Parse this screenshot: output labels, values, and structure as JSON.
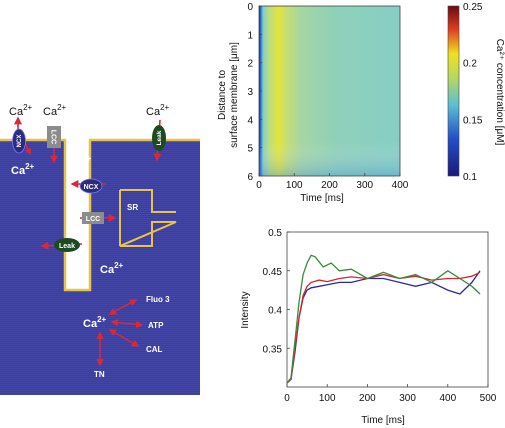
{
  "diagram": {
    "colors": {
      "cell": "#3c3e9c",
      "membrane": "#e6c44a",
      "arrow": "#d9283a",
      "channel_ncx": "#2c2c7c",
      "channel_lcc": "#8c8c8c",
      "channel_leak": "#1e4a22",
      "text": "#ffffff"
    },
    "outside_labels": {
      "ca_left": "Ca",
      "ca_mid": "Ca",
      "ca_right": "Ca",
      "charge": "2+"
    },
    "labels": {
      "ncx": "NCX",
      "lcc": "LCC",
      "leak": "Leak",
      "sr": "SR",
      "ca": "Ca",
      "charge": "2+",
      "fluo3": "Fluo 3",
      "atp": "ATP",
      "cal": "CAL",
      "tn": "TN"
    }
  },
  "heatmap": {
    "ylabel_line1": "Distance to",
    "ylabel_line2": "surface membrane [μm]",
    "xlabel": "Time [ms]",
    "yticks": [
      "0",
      "1",
      "2",
      "3",
      "4",
      "5",
      "6"
    ],
    "xticks": [
      "0",
      "100",
      "200",
      "300",
      "400"
    ],
    "colorbar_ticks": [
      "0.25",
      "0.2",
      "0.15",
      "0.1"
    ],
    "colorbar_label": "Ca²⁺ concentration [μM]"
  },
  "chart_data": {
    "type": "line",
    "xlabel": "Time [ms]",
    "ylabel": "Intensity",
    "xlim": [
      0,
      500
    ],
    "ylim": [
      0.3,
      0.5
    ],
    "xticks": [
      0,
      100,
      200,
      300,
      400,
      500
    ],
    "yticks": [
      0.35,
      0.4,
      0.45,
      0.5
    ],
    "series": [
      {
        "color": "#2a2aa0",
        "x": [
          0,
          10,
          20,
          30,
          40,
          50,
          60,
          80,
          100,
          130,
          160,
          200,
          240,
          280,
          320,
          360,
          400,
          430,
          460,
          480
        ],
        "y": [
          0.305,
          0.31,
          0.345,
          0.39,
          0.415,
          0.425,
          0.428,
          0.43,
          0.432,
          0.435,
          0.435,
          0.44,
          0.44,
          0.435,
          0.43,
          0.435,
          0.425,
          0.42,
          0.435,
          0.45
        ]
      },
      {
        "color": "#d02828",
        "x": [
          0,
          10,
          20,
          30,
          40,
          50,
          60,
          80,
          100,
          130,
          160,
          200,
          240,
          280,
          320,
          360,
          400,
          430,
          460,
          480
        ],
        "y": [
          0.305,
          0.31,
          0.35,
          0.39,
          0.418,
          0.43,
          0.435,
          0.438,
          0.436,
          0.44,
          0.442,
          0.44,
          0.445,
          0.44,
          0.443,
          0.438,
          0.44,
          0.44,
          0.443,
          0.448
        ]
      },
      {
        "color": "#3a8a3a",
        "x": [
          0,
          10,
          20,
          30,
          40,
          50,
          60,
          70,
          90,
          110,
          130,
          160,
          200,
          240,
          280,
          320,
          360,
          400,
          430,
          460,
          480
        ],
        "y": [
          0.305,
          0.312,
          0.36,
          0.41,
          0.445,
          0.46,
          0.47,
          0.468,
          0.455,
          0.46,
          0.45,
          0.452,
          0.44,
          0.448,
          0.44,
          0.445,
          0.435,
          0.45,
          0.44,
          0.43,
          0.42
        ]
      }
    ]
  }
}
